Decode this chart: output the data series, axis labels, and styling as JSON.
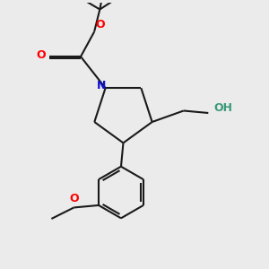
{
  "bg_color": "#ebebeb",
  "bond_color": "#1a1a1a",
  "O_color": "#ff0000",
  "N_color": "#1010cc",
  "OH_color": "#3a9a7a",
  "bond_width": 1.5,
  "dbo": 0.018,
  "xlim": [
    -1.0,
    1.2
  ],
  "ylim": [
    -1.25,
    1.1
  ]
}
